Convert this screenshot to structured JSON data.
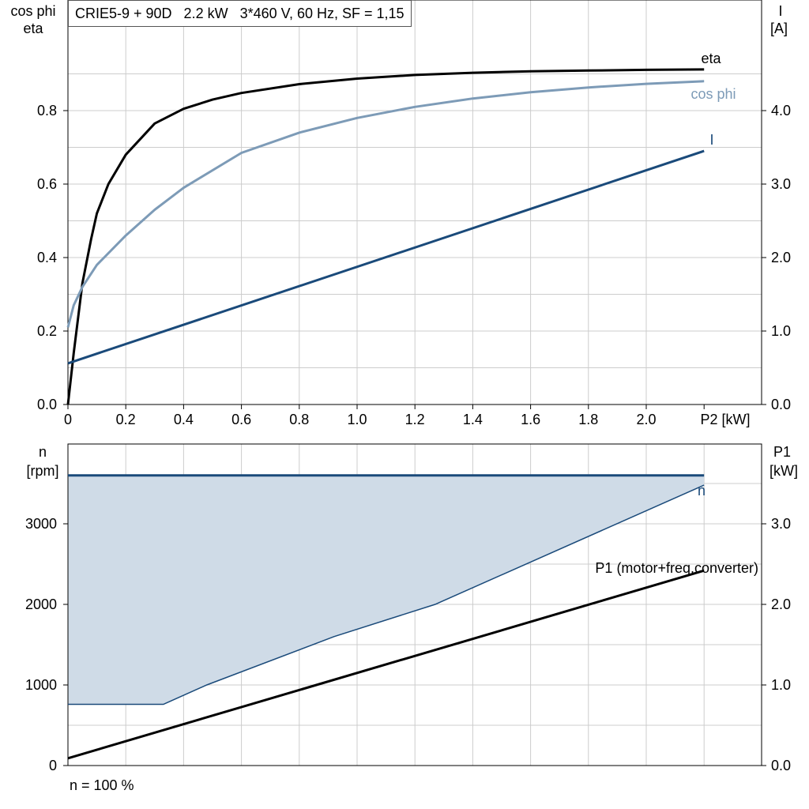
{
  "title": "CRIE5-9 + 90D   2.2 kW   3*460 V, 60 Hz, SF = 1,15",
  "footer": "n = 100 %",
  "colors": {
    "eta": "#000000",
    "cosphi": "#7d9bb7",
    "current": "#1a4a7a",
    "n": "#1a4a7a",
    "fill": "#cfdbe7",
    "p1": "#000000"
  },
  "top": {
    "left_label_1": "cos phi",
    "left_label_2": "eta",
    "right_label_1": "I",
    "right_label_2": "[A]",
    "x_label": "P2 [kW]"
  },
  "bottom": {
    "left_label_1": "n",
    "left_label_2": "[rpm]",
    "right_label_1": "P1",
    "right_label_2": "[kW]"
  },
  "chart_data": [
    {
      "type": "line",
      "x_unit": "P2 [kW]",
      "xlim": [
        0,
        2.4
      ],
      "ylim_left": [
        0,
        1.0
      ],
      "ylim_right": [
        0,
        5.0
      ],
      "x_ticks": [
        "0",
        "0.2",
        "0.4",
        "0.6",
        "0.8",
        "1.0",
        "1.2",
        "1.4",
        "1.6",
        "1.8",
        "2.0"
      ],
      "y_ticks_left": [
        "0.0",
        "0.2",
        "0.4",
        "0.6",
        "0.8"
      ],
      "y_ticks_right": [
        "0.0",
        "1.0",
        "2.0",
        "3.0",
        "4.0"
      ],
      "grid": true,
      "series": [
        {
          "name": "eta",
          "axis": "left",
          "x": [
            0,
            0.02,
            0.05,
            0.08,
            0.1,
            0.14,
            0.2,
            0.3,
            0.4,
            0.5,
            0.6,
            0.8,
            1.0,
            1.2,
            1.4,
            1.6,
            1.8,
            2.0,
            2.2
          ],
          "y": [
            0.0,
            0.14,
            0.33,
            0.45,
            0.52,
            0.6,
            0.68,
            0.765,
            0.805,
            0.83,
            0.848,
            0.872,
            0.887,
            0.897,
            0.903,
            0.907,
            0.909,
            0.911,
            0.912
          ]
        },
        {
          "name": "cos phi",
          "axis": "left",
          "x": [
            0,
            0.02,
            0.05,
            0.1,
            0.2,
            0.3,
            0.4,
            0.6,
            0.8,
            1.0,
            1.2,
            1.4,
            1.6,
            1.8,
            2.0,
            2.2
          ],
          "y": [
            0.21,
            0.27,
            0.32,
            0.38,
            0.46,
            0.53,
            0.59,
            0.685,
            0.74,
            0.78,
            0.81,
            0.833,
            0.85,
            0.863,
            0.873,
            0.88
          ]
        },
        {
          "name": "I",
          "axis": "right",
          "x": [
            0,
            2.2
          ],
          "y": [
            0.56,
            3.45
          ]
        }
      ]
    },
    {
      "type": "area",
      "xlim": [
        0,
        2.4
      ],
      "ylim_left": [
        0,
        4000
      ],
      "ylim_right": [
        0,
        4.0
      ],
      "y_ticks_left": [
        "0",
        "1000",
        "2000",
        "3000"
      ],
      "y_ticks_right": [
        "0.0",
        "1.0",
        "2.0",
        "3.0"
      ],
      "grid": true,
      "series": [
        {
          "name": "n",
          "axis": "left",
          "x": [
            0,
            2.2
          ],
          "y": [
            3600,
            3600
          ]
        },
        {
          "name": "n lower bound",
          "axis": "left",
          "x": [
            0,
            0.33,
            0.48,
            0.92,
            1.27,
            2.2
          ],
          "y": [
            760,
            760,
            1000,
            1600,
            2000,
            3480
          ]
        },
        {
          "name": "P1 (motor+freq.converter)",
          "axis": "right",
          "x": [
            0,
            2.2
          ],
          "y": [
            0.09,
            2.42
          ]
        }
      ]
    }
  ]
}
